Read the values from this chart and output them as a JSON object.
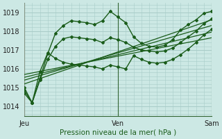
{
  "title": "",
  "xlabel": "Pression niveau de la mer( hPa )",
  "bg_color": "#cce8e4",
  "grid_color": "#a8ccc8",
  "line_color": "#1a5c1a",
  "ylim": [
    1013.5,
    1019.5
  ],
  "yticks": [
    1014,
    1015,
    1016,
    1017,
    1018,
    1019
  ],
  "xlim": [
    0,
    48
  ],
  "x_jeu": 0,
  "x_ven": 24,
  "x_sam": 48,
  "series": [
    {
      "x": [
        0,
        2,
        4,
        6,
        8,
        10,
        12,
        14,
        16,
        18,
        20,
        22,
        24,
        26,
        28,
        30,
        32,
        34,
        36,
        38,
        40,
        42,
        44,
        46,
        48
      ],
      "y": [
        1014.7,
        1014.2,
        1015.5,
        1016.8,
        1017.9,
        1018.3,
        1018.55,
        1018.5,
        1018.45,
        1018.35,
        1018.55,
        1019.05,
        1018.75,
        1018.45,
        1017.7,
        1017.35,
        1017.2,
        1017.15,
        1017.25,
        1017.55,
        1018.05,
        1018.35,
        1018.6,
        1018.95,
        1019.05
      ],
      "markers": true,
      "lw": 1.0,
      "ls": "-"
    },
    {
      "x": [
        0,
        2,
        4,
        6,
        8,
        10,
        12,
        14,
        16,
        18,
        20,
        22,
        24,
        26,
        28,
        30,
        32,
        34,
        36,
        38,
        40,
        42,
        44,
        46,
        48
      ],
      "y": [
        1014.85,
        1014.2,
        1015.4,
        1016.5,
        1017.2,
        1017.6,
        1017.7,
        1017.65,
        1017.6,
        1017.55,
        1017.4,
        1017.65,
        1017.55,
        1017.4,
        1017.15,
        1017.0,
        1016.95,
        1016.9,
        1016.95,
        1017.1,
        1017.4,
        1017.7,
        1018.0,
        1018.4,
        1018.65
      ],
      "markers": true,
      "lw": 1.0,
      "ls": "-"
    },
    {
      "x": [
        0,
        2,
        4,
        6,
        8,
        10,
        12,
        14,
        16,
        18,
        20,
        22,
        24,
        26,
        28,
        30,
        32,
        34,
        36,
        38,
        40,
        42,
        44,
        46,
        48
      ],
      "y": [
        1015.0,
        1014.2,
        1015.85,
        1016.85,
        1016.55,
        1016.35,
        1016.25,
        1016.2,
        1016.15,
        1016.1,
        1016.0,
        1016.2,
        1016.1,
        1016.0,
        1016.7,
        1016.5,
        1016.35,
        1016.3,
        1016.35,
        1016.5,
        1016.75,
        1017.05,
        1017.4,
        1017.8,
        1018.1
      ],
      "markers": true,
      "lw": 1.0,
      "ls": "-"
    },
    {
      "x": [
        0,
        48
      ],
      "y": [
        1015.2,
        1018.6
      ],
      "markers": false,
      "lw": 0.9,
      "ls": "-"
    },
    {
      "x": [
        0,
        48
      ],
      "y": [
        1015.4,
        1018.3
      ],
      "markers": false,
      "lw": 0.9,
      "ls": "-"
    },
    {
      "x": [
        0,
        48
      ],
      "y": [
        1015.55,
        1017.95
      ],
      "markers": false,
      "lw": 0.9,
      "ls": "-"
    },
    {
      "x": [
        0,
        48
      ],
      "y": [
        1015.7,
        1017.65
      ],
      "markers": false,
      "lw": 0.9,
      "ls": "-"
    }
  ]
}
